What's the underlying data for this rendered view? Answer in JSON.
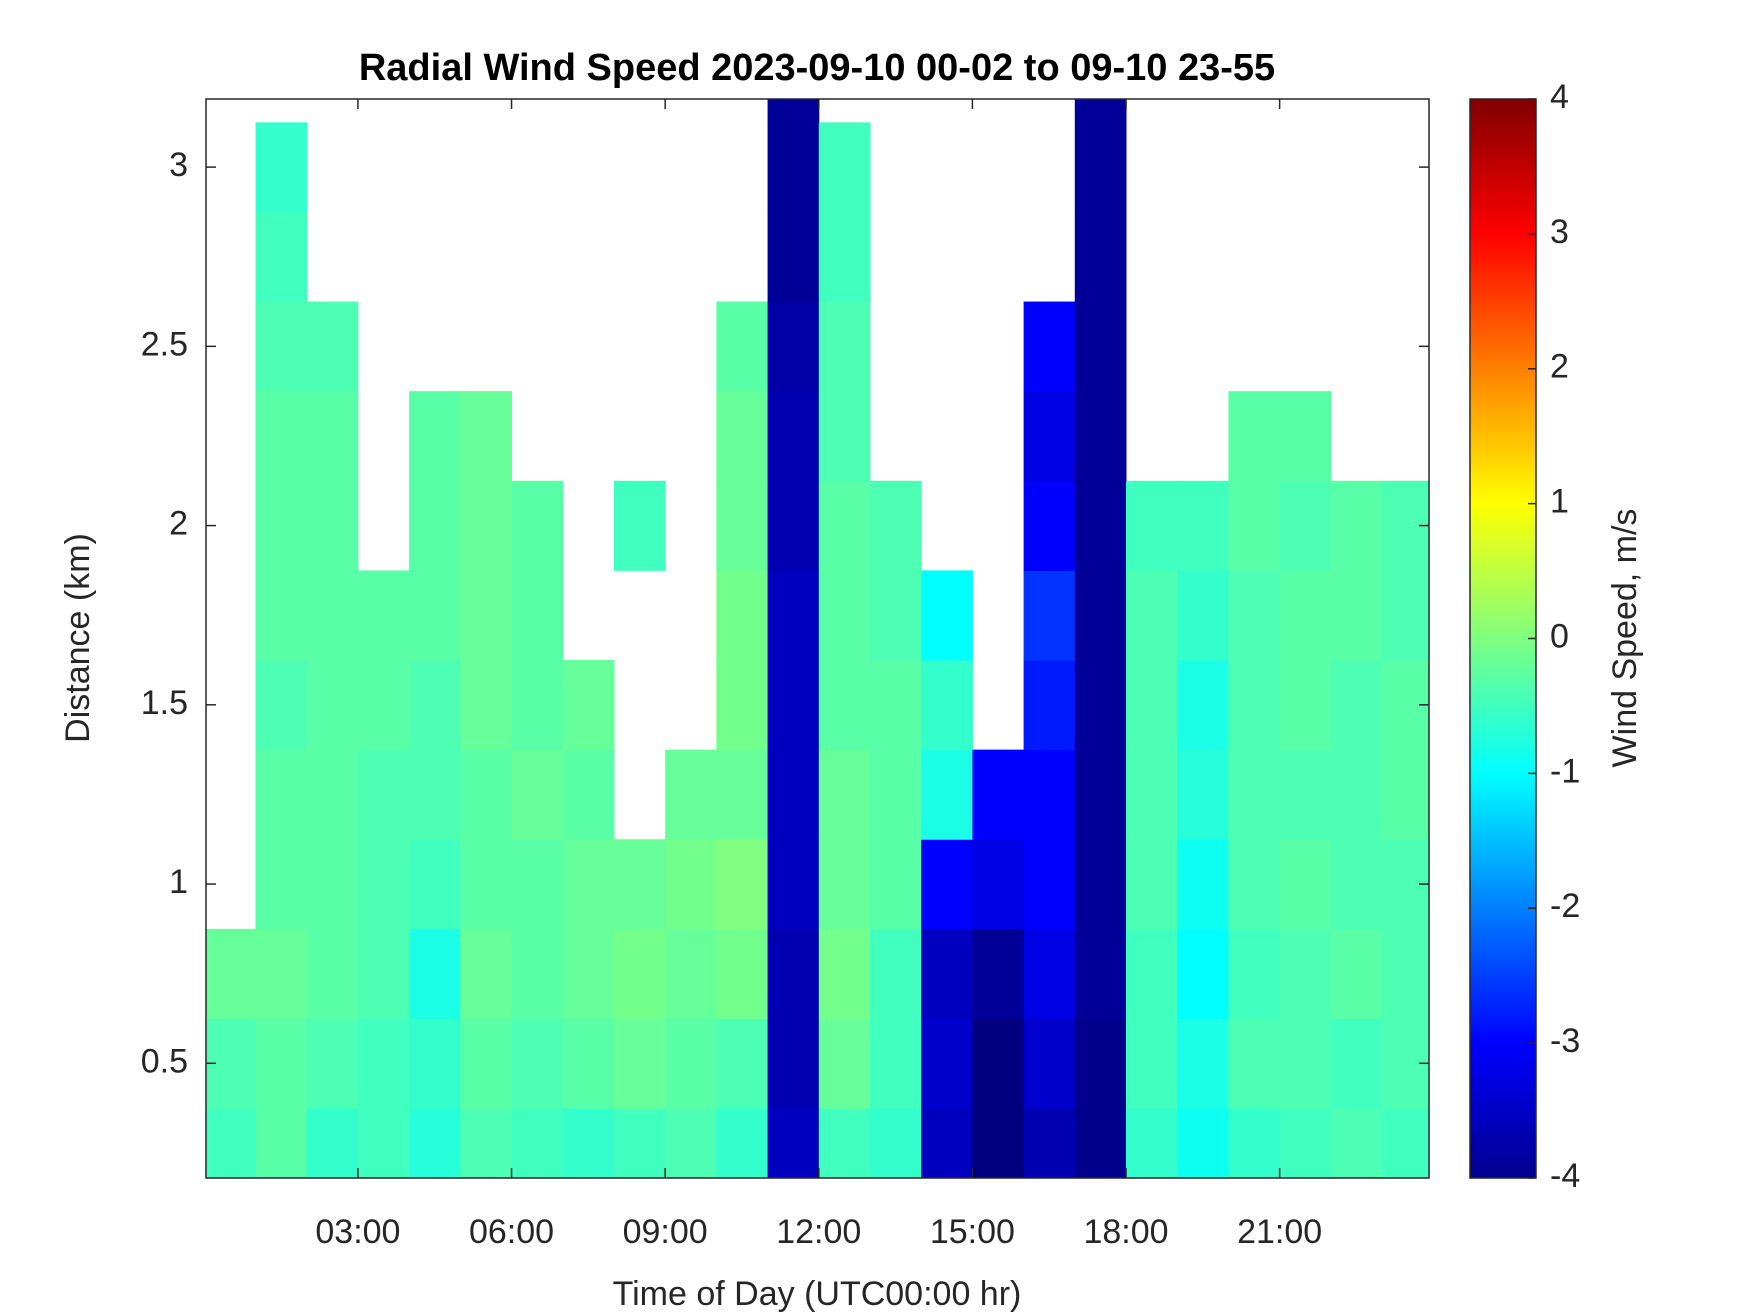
{
  "chart_data": {
    "type": "heatmap",
    "title": "Radial Wind Speed 2023-09-10 00-02 to 09-10 23-55",
    "xlabel": "Time of Day (UTC00:00 hr)",
    "ylabel": "Distance (km)",
    "colorbar_label": "Wind Speed, m/s",
    "colormap": "jet",
    "xlim": [
      0.033,
      23.917
    ],
    "ylim": [
      0.18,
      3.19
    ],
    "clim": [
      -4,
      4
    ],
    "xticks": [
      {
        "value": 3,
        "label": "03:00"
      },
      {
        "value": 6,
        "label": "06:00"
      },
      {
        "value": 9,
        "label": "09:00"
      },
      {
        "value": 12,
        "label": "12:00"
      },
      {
        "value": 15,
        "label": "15:00"
      },
      {
        "value": 18,
        "label": "18:00"
      },
      {
        "value": 21,
        "label": "21:00"
      }
    ],
    "yticks": [
      0.5,
      1,
      1.5,
      2,
      2.5,
      3
    ],
    "cticks": [
      -4,
      -3,
      -2,
      -1,
      0,
      1,
      2,
      3,
      4
    ],
    "x": [
      0.5,
      1.5,
      2.5,
      3.5,
      4.5,
      5.5,
      6.5,
      7.5,
      8.5,
      9.5,
      10.5,
      11.5,
      12.5,
      13.5,
      14.5,
      15.5,
      16.5,
      17.5,
      18.5,
      19.5,
      20.5,
      21.5,
      22.5,
      23.5
    ],
    "y": [
      0.25,
      0.5,
      0.75,
      1,
      1.25,
      1.5,
      1.75,
      2,
      2.25,
      2.5,
      2.75,
      3,
      3.25
    ],
    "z": [
      [
        -0.5,
        -0.3,
        -0.6,
        -0.5,
        -0.7,
        -0.4,
        -0.5,
        -0.6,
        -0.5,
        -0.4,
        -0.6,
        -3.5,
        -0.5,
        -0.6,
        -3.5,
        -4,
        -3.6,
        -3.9,
        -0.6,
        -0.9,
        -0.6,
        -0.5,
        -0.4,
        -0.5
      ],
      [
        -0.4,
        -0.3,
        -0.4,
        -0.5,
        -0.6,
        -0.3,
        -0.4,
        -0.3,
        -0.2,
        -0.3,
        -0.4,
        -3.6,
        -0.2,
        -0.5,
        -3.4,
        -4,
        -3.4,
        -3.9,
        -0.5,
        -0.8,
        -0.4,
        -0.4,
        -0.5,
        -0.4
      ],
      [
        -0.2,
        -0.2,
        -0.3,
        -0.4,
        -0.8,
        -0.2,
        -0.3,
        -0.2,
        -0.1,
        -0.2,
        -0.1,
        -3.6,
        -0.1,
        -0.5,
        -3.5,
        -3.8,
        -3.2,
        -3.8,
        -0.5,
        -1.0,
        -0.5,
        -0.4,
        -0.3,
        -0.4
      ],
      [
        null,
        -0.3,
        -0.3,
        -0.4,
        -0.5,
        -0.3,
        -0.3,
        -0.2,
        -0.2,
        -0.1,
        0,
        -3.5,
        -0.2,
        -0.3,
        -3.0,
        -3.2,
        -3.0,
        -3.8,
        -0.4,
        -0.9,
        -0.4,
        -0.3,
        -0.4,
        -0.4
      ],
      [
        null,
        -0.3,
        -0.3,
        -0.4,
        -0.4,
        -0.3,
        -0.2,
        -0.3,
        null,
        -0.2,
        -0.2,
        -3.5,
        -0.2,
        -0.3,
        -0.8,
        -3.0,
        -3.0,
        -3.8,
        -0.4,
        -0.7,
        -0.4,
        -0.4,
        -0.4,
        -0.3
      ],
      [
        null,
        -0.4,
        -0.3,
        -0.3,
        -0.4,
        -0.2,
        -0.3,
        -0.2,
        null,
        null,
        -0.1,
        -3.5,
        -0.3,
        -0.3,
        -0.6,
        null,
        -2.8,
        -3.8,
        -0.4,
        -0.8,
        -0.4,
        -0.3,
        -0.4,
        -0.3
      ],
      [
        null,
        -0.3,
        -0.3,
        -0.3,
        -0.3,
        -0.2,
        -0.3,
        null,
        null,
        null,
        -0.1,
        -3.5,
        -0.3,
        -0.4,
        -1.0,
        null,
        -2.6,
        -3.8,
        -0.4,
        -0.6,
        -0.4,
        -0.3,
        -0.3,
        -0.4
      ],
      [
        null,
        -0.3,
        -0.3,
        null,
        -0.3,
        -0.2,
        -0.3,
        null,
        -0.5,
        null,
        -0.2,
        -3.6,
        -0.3,
        -0.4,
        null,
        null,
        -3.0,
        -3.8,
        -0.5,
        -0.5,
        -0.3,
        -0.4,
        -0.3,
        -0.4
      ],
      [
        null,
        -0.3,
        -0.3,
        null,
        -0.3,
        -0.2,
        null,
        null,
        null,
        null,
        -0.2,
        -3.6,
        -0.4,
        null,
        null,
        null,
        -3.2,
        -3.8,
        null,
        null,
        -0.3,
        -0.3,
        null,
        null
      ],
      [
        null,
        -0.4,
        -0.4,
        null,
        null,
        null,
        null,
        null,
        null,
        null,
        -0.3,
        -3.7,
        -0.4,
        null,
        null,
        null,
        -3.0,
        -3.8,
        null,
        null,
        null,
        null,
        null,
        null
      ],
      [
        null,
        -0.5,
        null,
        null,
        null,
        null,
        null,
        null,
        null,
        null,
        null,
        -3.8,
        -0.5,
        null,
        null,
        null,
        null,
        -3.8,
        null,
        null,
        null,
        null,
        null,
        null
      ],
      [
        null,
        -0.6,
        null,
        null,
        null,
        null,
        null,
        null,
        null,
        null,
        null,
        -3.8,
        -0.5,
        null,
        null,
        null,
        null,
        -3.8,
        null,
        null,
        null,
        null,
        null,
        null
      ],
      [
        null,
        null,
        null,
        null,
        null,
        null,
        null,
        null,
        null,
        null,
        null,
        -3.8,
        null,
        null,
        null,
        null,
        null,
        -3.8,
        null,
        null,
        null,
        null,
        null,
        null
      ]
    ]
  }
}
